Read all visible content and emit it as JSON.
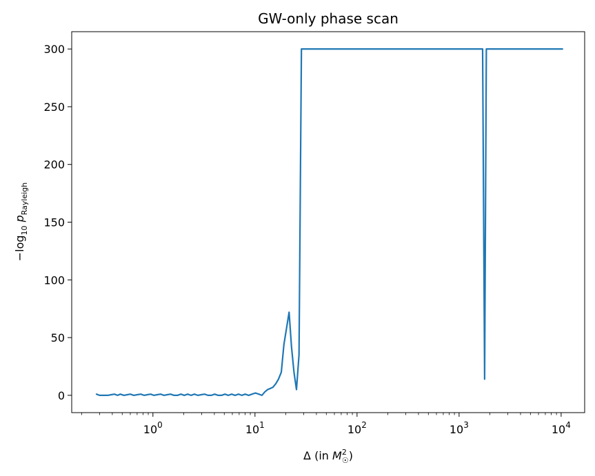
{
  "chart_data": {
    "type": "line",
    "title": "GW-only phase scan",
    "xlabel": "Δ (in M☉²)",
    "ylabel": "−log₁₀ p_Rayleigh",
    "xscale": "log",
    "xlim": [
      0.16,
      17000
    ],
    "ylim": [
      -15,
      315
    ],
    "grid": false,
    "xticks": [
      {
        "value": 1,
        "base": "10",
        "exp": "0"
      },
      {
        "value": 10,
        "base": "10",
        "exp": "1"
      },
      {
        "value": 100,
        "base": "10",
        "exp": "2"
      },
      {
        "value": 1000,
        "base": "10",
        "exp": "3"
      },
      {
        "value": 10000,
        "base": "10",
        "exp": "4"
      }
    ],
    "yticks": [
      0,
      50,
      100,
      150,
      200,
      250,
      300
    ],
    "series": [
      {
        "color": "#1f77b4",
        "x": [
          0.28,
          0.3,
          0.33,
          0.36,
          0.39,
          0.42,
          0.45,
          0.48,
          0.52,
          0.56,
          0.6,
          0.65,
          0.7,
          0.76,
          0.82,
          0.88,
          0.95,
          1.02,
          1.1,
          1.19,
          1.28,
          1.38,
          1.49,
          1.61,
          1.74,
          1.88,
          2.03,
          2.19,
          2.36,
          2.55,
          2.75,
          2.97,
          3.21,
          3.46,
          3.74,
          4.03,
          4.35,
          4.7,
          5.07,
          5.48,
          5.91,
          6.38,
          6.89,
          7.43,
          8.02,
          8.66,
          9.35,
          10.1,
          10.9,
          11.7,
          12.5,
          13.3,
          14.2,
          15.0,
          16.0,
          17.0,
          18.1,
          19.2,
          20.3,
          21.6,
          22.8,
          24.1,
          25.5,
          27.0,
          28.5,
          30.0,
          31.7,
          100,
          500,
          1000,
          1500,
          1650,
          1700,
          1780,
          1850,
          1920,
          2000,
          3000,
          5000,
          10300
        ],
        "y": [
          1,
          0,
          0,
          0,
          0.5,
          1,
          0,
          1,
          0,
          0.5,
          1,
          0,
          0.5,
          1,
          0,
          0.5,
          1,
          0,
          0.5,
          1,
          0,
          0.5,
          1,
          0,
          0,
          1,
          0,
          1,
          0,
          1,
          0,
          0.5,
          1,
          0,
          0,
          1,
          0,
          0,
          1,
          0,
          1,
          0,
          1,
          0,
          1,
          0,
          1,
          2,
          1,
          0,
          3,
          5,
          6,
          7,
          10,
          14,
          20,
          44,
          57,
          72,
          42,
          20,
          5,
          35,
          300,
          300,
          300,
          300,
          300,
          300,
          300,
          300,
          300,
          14,
          300,
          300,
          300,
          300,
          300,
          300
        ]
      }
    ]
  }
}
